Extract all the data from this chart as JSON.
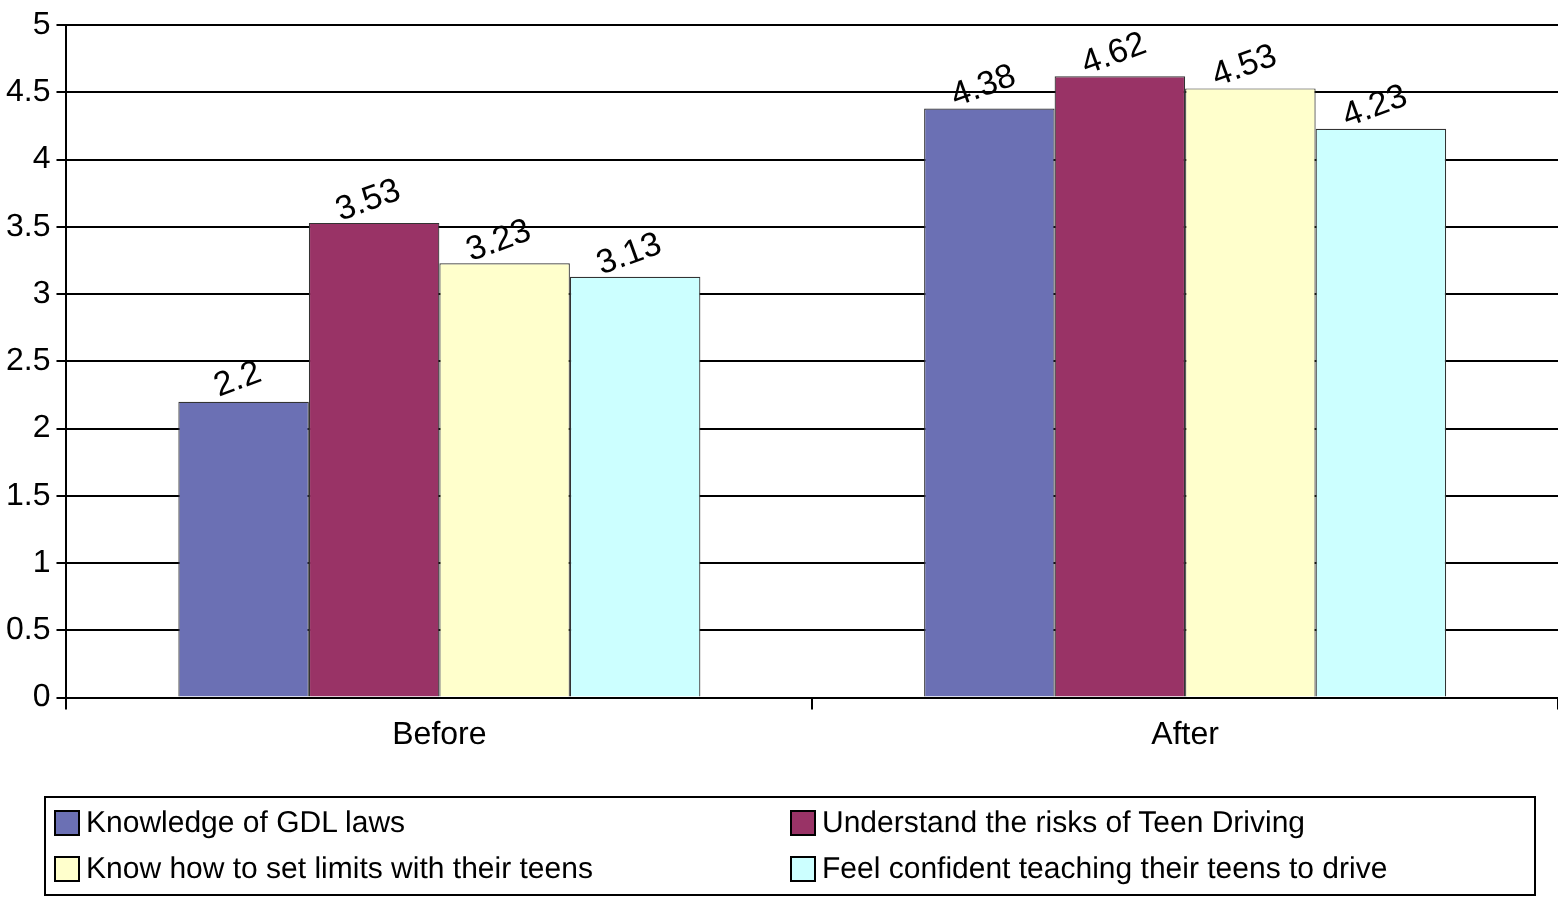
{
  "chart_data": {
    "type": "bar",
    "categories": [
      "Before",
      "After"
    ],
    "series": [
      {
        "name": "Knowledge of GDL laws",
        "color": "#6b70b4",
        "values": [
          2.2,
          4.38
        ]
      },
      {
        "name": "Understand the risks of Teen Driving",
        "color": "#993366",
        "values": [
          3.53,
          4.62
        ]
      },
      {
        "name": "Know how to set limits with their teens",
        "color": "#ffffcc",
        "values": [
          3.23,
          4.53
        ]
      },
      {
        "name": "Feel confident teaching their teens to drive",
        "color": "#ccffff",
        "values": [
          3.13,
          4.23
        ]
      }
    ],
    "ylim": [
      0,
      5
    ],
    "yticks": [
      0,
      0.5,
      1,
      1.5,
      2,
      2.5,
      3,
      3.5,
      4,
      4.5,
      5
    ],
    "grid": "y",
    "legend": "bottom",
    "data_labels": true
  }
}
